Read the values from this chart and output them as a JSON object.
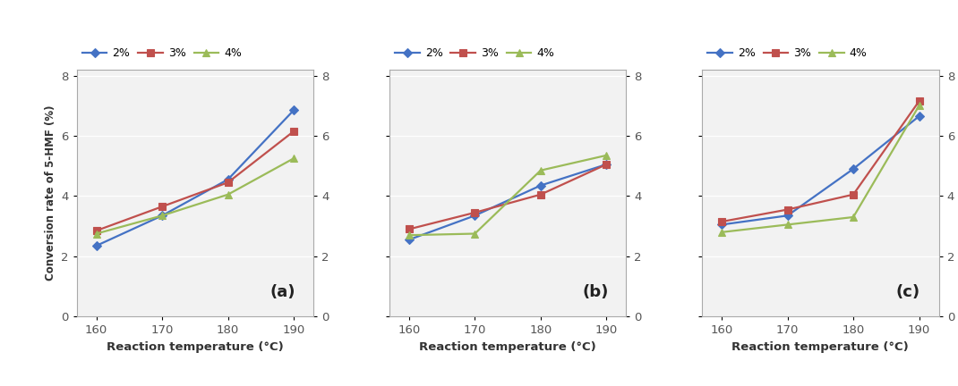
{
  "x": [
    160,
    170,
    180,
    190
  ],
  "subplots": [
    {
      "label": "(a)",
      "series": {
        "2%": [
          2.35,
          3.35,
          4.55,
          6.85
        ],
        "3%": [
          2.85,
          3.65,
          4.45,
          6.15
        ],
        "4%": [
          2.75,
          3.35,
          4.05,
          5.25
        ]
      }
    },
    {
      "label": "(b)",
      "series": {
        "2%": [
          2.55,
          3.35,
          4.35,
          5.05
        ],
        "3%": [
          2.9,
          3.45,
          4.05,
          5.05
        ],
        "4%": [
          2.7,
          2.75,
          4.85,
          5.35
        ]
      }
    },
    {
      "label": "(c)",
      "series": {
        "2%": [
          3.05,
          3.35,
          4.9,
          6.65
        ],
        "3%": [
          3.15,
          3.55,
          4.05,
          7.15
        ],
        "4%": [
          2.8,
          3.05,
          3.3,
          7.0
        ]
      }
    }
  ],
  "colors": {
    "2%": "#4472C4",
    "3%": "#C0504D",
    "4%": "#9BBB59"
  },
  "markers": {
    "2%": "D",
    "3%": "s",
    "4%": "^"
  },
  "ylim": [
    0,
    8.2
  ],
  "yticks": [
    0,
    2,
    4,
    6,
    8
  ],
  "xlabel": "Reaction temperature (°C)",
  "ylabel": "Conversion rate of 5-HMF (%)",
  "legend_labels": [
    "2%",
    "3%",
    "4%"
  ],
  "plot_bg_color": "#F2F2F2",
  "fig_bg_color": "#FFFFFF",
  "grid_color": "#FFFFFF",
  "spine_color": "#AAAAAA",
  "tick_color": "#555555"
}
